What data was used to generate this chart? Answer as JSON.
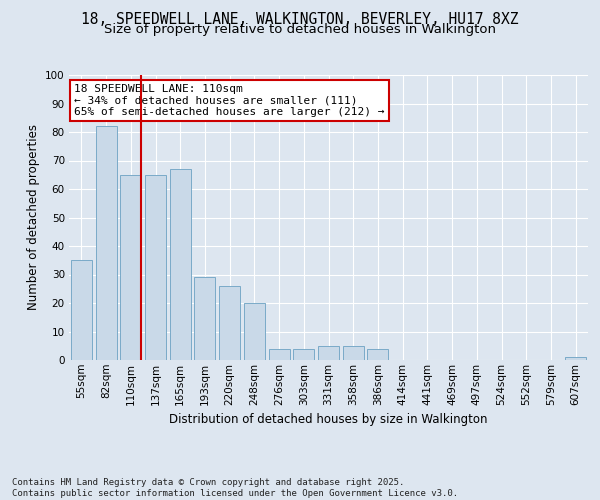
{
  "title_line1": "18, SPEEDWELL LANE, WALKINGTON, BEVERLEY, HU17 8XZ",
  "title_line2": "Size of property relative to detached houses in Walkington",
  "xlabel": "Distribution of detached houses by size in Walkington",
  "ylabel": "Number of detached properties",
  "categories": [
    "55sqm",
    "82sqm",
    "110sqm",
    "137sqm",
    "165sqm",
    "193sqm",
    "220sqm",
    "248sqm",
    "276sqm",
    "303sqm",
    "331sqm",
    "358sqm",
    "386sqm",
    "414sqm",
    "441sqm",
    "469sqm",
    "497sqm",
    "524sqm",
    "552sqm",
    "579sqm",
    "607sqm"
  ],
  "values": [
    35,
    82,
    65,
    65,
    67,
    29,
    26,
    20,
    4,
    4,
    5,
    5,
    4,
    0,
    0,
    0,
    0,
    0,
    0,
    0,
    1
  ],
  "bar_color": "#c9d9e8",
  "bar_edge_color": "#7aaac8",
  "highlight_bar_index": 2,
  "vline_color": "#cc0000",
  "annotation_text": "18 SPEEDWELL LANE: 110sqm\n← 34% of detached houses are smaller (111)\n65% of semi-detached houses are larger (212) →",
  "annotation_box_facecolor": "#ffffff",
  "annotation_box_edgecolor": "#cc0000",
  "ylim": [
    0,
    100
  ],
  "yticks": [
    0,
    10,
    20,
    30,
    40,
    50,
    60,
    70,
    80,
    90,
    100
  ],
  "bg_color": "#dde6f0",
  "plot_bg_color": "#dde6f0",
  "footer_text": "Contains HM Land Registry data © Crown copyright and database right 2025.\nContains public sector information licensed under the Open Government Licence v3.0.",
  "title_fontsize": 10.5,
  "subtitle_fontsize": 9.5,
  "axis_label_fontsize": 8.5,
  "tick_fontsize": 7.5,
  "annotation_fontsize": 8,
  "footer_fontsize": 6.5
}
